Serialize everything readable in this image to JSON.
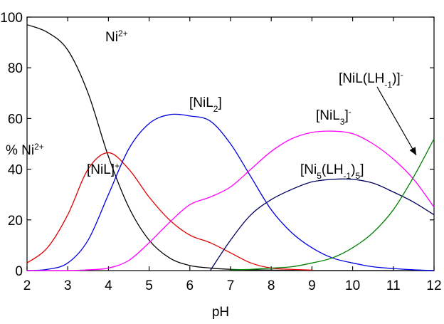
{
  "chart_data": {
    "type": "line",
    "x_label": "pH",
    "y_label_parts": [
      {
        "text": "% Ni"
      },
      {
        "sup": "2+"
      }
    ],
    "x": [
      2,
      2.5,
      3,
      3.5,
      4,
      4.5,
      5,
      5.5,
      6,
      6.5,
      7,
      7.5,
      8,
      8.5,
      9,
      9.5,
      10,
      10.5,
      11,
      11.5,
      12
    ],
    "xlim": [
      2,
      12
    ],
    "xticks": [
      2,
      3,
      4,
      5,
      6,
      7,
      8,
      9,
      10,
      11,
      12
    ],
    "ylim": [
      0,
      100
    ],
    "yticks": [
      0,
      20,
      40,
      60,
      80,
      100
    ],
    "series": [
      {
        "name_parts": [
          {
            "text": "Ni"
          },
          {
            "sup": "2+"
          }
        ],
        "color": "#000000",
        "values": [
          97,
          94,
          87,
          70,
          45,
          25,
          12,
          5,
          2,
          1,
          0.5,
          0.3,
          0.2,
          0.1,
          0,
          0,
          0,
          0,
          0,
          0,
          0
        ]
      },
      {
        "name_parts": [
          {
            "text": "[NiL]"
          },
          {
            "sup": "+"
          }
        ],
        "color": "#e00000",
        "values": [
          3,
          9,
          22,
          40,
          46.5,
          40,
          29,
          20,
          14,
          11,
          7,
          3,
          1,
          0.5,
          0.2,
          null,
          null,
          null,
          null,
          null,
          null
        ]
      },
      {
        "name_parts": [
          {
            "text": "[NiL"
          },
          {
            "sub": "2"
          },
          {
            "text": "]"
          }
        ],
        "color": "#0000e0",
        "values": [
          0,
          0.5,
          3,
          12,
          30,
          48,
          58,
          61.5,
          61,
          59,
          50,
          37,
          24,
          15,
          9,
          5,
          3,
          1.5,
          0.8,
          0.3,
          0
        ]
      },
      {
        "name_parts": [
          {
            "text": "[NiL"
          },
          {
            "sub": "3"
          },
          {
            "text": "]"
          },
          {
            "sup": "-"
          }
        ],
        "color": "#ff00ff",
        "values": [
          0,
          0,
          0,
          0.3,
          1,
          4,
          11,
          19,
          26,
          29,
          33,
          40,
          47,
          52,
          54.5,
          55,
          54,
          50,
          44,
          36,
          25
        ]
      },
      {
        "name_parts": [
          {
            "text": "[Ni"
          },
          {
            "sub": "5"
          },
          {
            "text": "(LH"
          },
          {
            "sub": "-1"
          },
          {
            "text": ")"
          },
          {
            "sub": "5"
          },
          {
            "text": "]"
          }
        ],
        "color": "#000060",
        "values": [
          null,
          null,
          null,
          null,
          null,
          null,
          null,
          null,
          null,
          0,
          12,
          22,
          28,
          32,
          35,
          36,
          36,
          34.5,
          31,
          27,
          22
        ]
      },
      {
        "name_parts": [
          {
            "text": "[NiL(LH"
          },
          {
            "sub": "-1"
          },
          {
            "text": ")]"
          },
          {
            "sup": "-"
          }
        ],
        "color": "#008000",
        "values": [
          null,
          null,
          null,
          null,
          null,
          null,
          null,
          null,
          null,
          null,
          0.3,
          0.5,
          1,
          1.5,
          3,
          5,
          9,
          15,
          24,
          37,
          52
        ]
      }
    ]
  }
}
